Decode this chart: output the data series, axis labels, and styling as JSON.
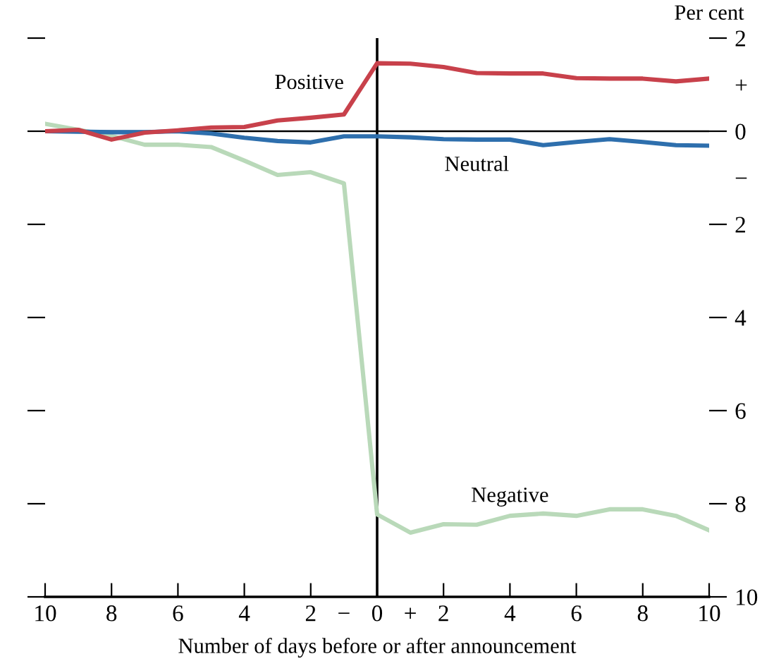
{
  "chart_data": {
    "type": "line",
    "xlabel": "Number of days before or after announcement",
    "ylabel": "Per cent",
    "x": [
      -10,
      -9,
      -8,
      -7,
      -6,
      -5,
      -4,
      -3,
      -2,
      -1,
      0,
      1,
      2,
      3,
      4,
      5,
      6,
      7,
      8,
      9,
      10
    ],
    "series": [
      {
        "name": "Positive",
        "color": "#c8414b",
        "values": [
          0,
          0.03,
          -0.18,
          -0.03,
          0.02,
          0.08,
          0.09,
          0.23,
          0.29,
          0.36,
          1.46,
          1.45,
          1.38,
          1.25,
          1.24,
          1.24,
          1.14,
          1.13,
          1.13,
          1.07,
          1.13
        ]
      },
      {
        "name": "Neutral",
        "color": "#2e6fad",
        "values": [
          0,
          -0.01,
          -0.02,
          -0.02,
          0,
          -0.05,
          -0.14,
          -0.21,
          -0.24,
          -0.11,
          -0.11,
          -0.13,
          -0.17,
          -0.18,
          -0.18,
          -0.3,
          -0.23,
          -0.17,
          -0.23,
          -0.3,
          -0.31
        ]
      },
      {
        "name": "Negative",
        "color": "#b9d9b9",
        "values": [
          0.16,
          0.03,
          -0.1,
          -0.29,
          -0.29,
          -0.34,
          -0.63,
          -0.94,
          -0.88,
          -1.12,
          -8.23,
          -8.62,
          -8.44,
          -8.45,
          -8.26,
          -8.21,
          -8.26,
          -8.12,
          -8.12,
          -8.26,
          -8.57
        ]
      }
    ],
    "xlim": [
      -10,
      10
    ],
    "xticks": [
      {
        "value": -10,
        "label": "10"
      },
      {
        "value": -8,
        "label": "8"
      },
      {
        "value": -6,
        "label": "6"
      },
      {
        "value": -4,
        "label": "4"
      },
      {
        "value": -2,
        "label": "2"
      },
      {
        "value": -1,
        "label": "−"
      },
      0,
      {
        "value": 1,
        "label": "+"
      },
      2,
      4,
      6,
      8,
      10
    ],
    "ylim": [
      -10,
      2
    ],
    "yticks": [
      2,
      {
        "value": 1,
        "label": "+"
      },
      0,
      {
        "value": -1,
        "label": "−"
      },
      {
        "value": -2,
        "label": "2"
      },
      {
        "value": -4,
        "label": "4"
      },
      {
        "value": -6,
        "label": "6"
      },
      {
        "value": -8,
        "label": "8"
      },
      {
        "value": -10,
        "label": "10"
      }
    ],
    "ref_lines": [
      {
        "axis": "x",
        "value": 0,
        "color": "#000000"
      },
      {
        "axis": "y",
        "value": 0,
        "color": "#000000"
      }
    ],
    "grid": false,
    "legend": false,
    "marker": "none",
    "line_style": "solid"
  }
}
